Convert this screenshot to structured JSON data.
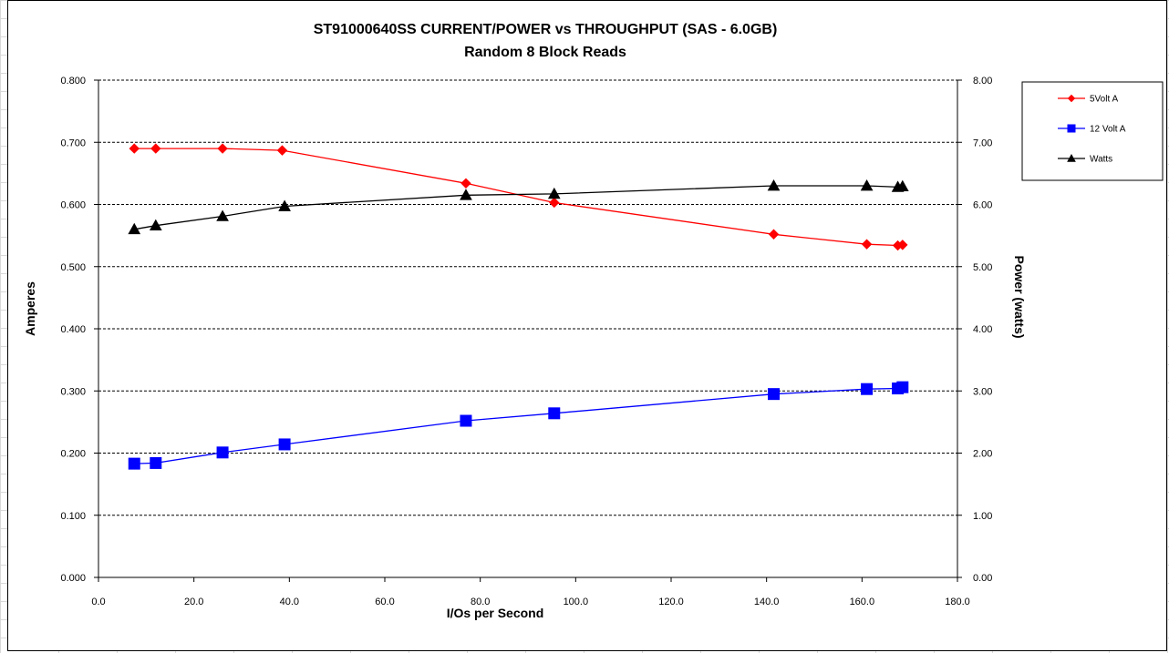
{
  "chart_data": {
    "type": "line",
    "title": "ST91000640SS CURRENT/POWER vs THROUGHPUT (SAS - 6.0GB)",
    "subtitle": "Random 8 Block Reads",
    "xlabel": "I/Os per Second",
    "ylabel": "Amperes",
    "y2label": "Power (watts)",
    "xlim": [
      0,
      180
    ],
    "ylim": [
      0,
      0.8
    ],
    "y2lim": [
      0,
      8
    ],
    "grid": true,
    "legend_position": "right",
    "x_ticks": [
      "0.0",
      "20.0",
      "40.0",
      "60.0",
      "80.0",
      "100.0",
      "120.0",
      "140.0",
      "160.0",
      "180.0"
    ],
    "y_ticks": [
      "0.000",
      "0.100",
      "0.200",
      "0.300",
      "0.400",
      "0.500",
      "0.600",
      "0.700",
      "0.800"
    ],
    "y2_ticks": [
      "0.00",
      "1.00",
      "2.00",
      "3.00",
      "4.00",
      "5.00",
      "6.00",
      "7.00",
      "8.00"
    ],
    "series": [
      {
        "name": "5Volt A",
        "axis": "left",
        "color": "#ff0000",
        "marker": "diamond",
        "x": [
          7.5,
          12,
          26,
          38.5,
          77,
          95.5,
          141.5,
          161,
          167.5,
          168.5
        ],
        "y": [
          0.69,
          0.69,
          0.69,
          0.687,
          0.634,
          0.603,
          0.552,
          0.536,
          0.534,
          0.535
        ]
      },
      {
        "name": "12 Volt A",
        "axis": "left",
        "color": "#0000ff",
        "marker": "square",
        "x": [
          7.5,
          12,
          26,
          39,
          77,
          95.5,
          141.5,
          161,
          167.5,
          168.5
        ],
        "y": [
          0.183,
          0.184,
          0.201,
          0.214,
          0.252,
          0.264,
          0.295,
          0.303,
          0.304,
          0.306
        ]
      },
      {
        "name": "Watts",
        "axis": "right",
        "color": "#000000",
        "marker": "triangle",
        "x": [
          7.5,
          12,
          26,
          39,
          77,
          95.5,
          141.5,
          161,
          167.5,
          168.5
        ],
        "y": [
          5.6,
          5.66,
          5.81,
          5.97,
          6.15,
          6.17,
          6.3,
          6.3,
          6.28,
          6.29
        ]
      }
    ]
  }
}
